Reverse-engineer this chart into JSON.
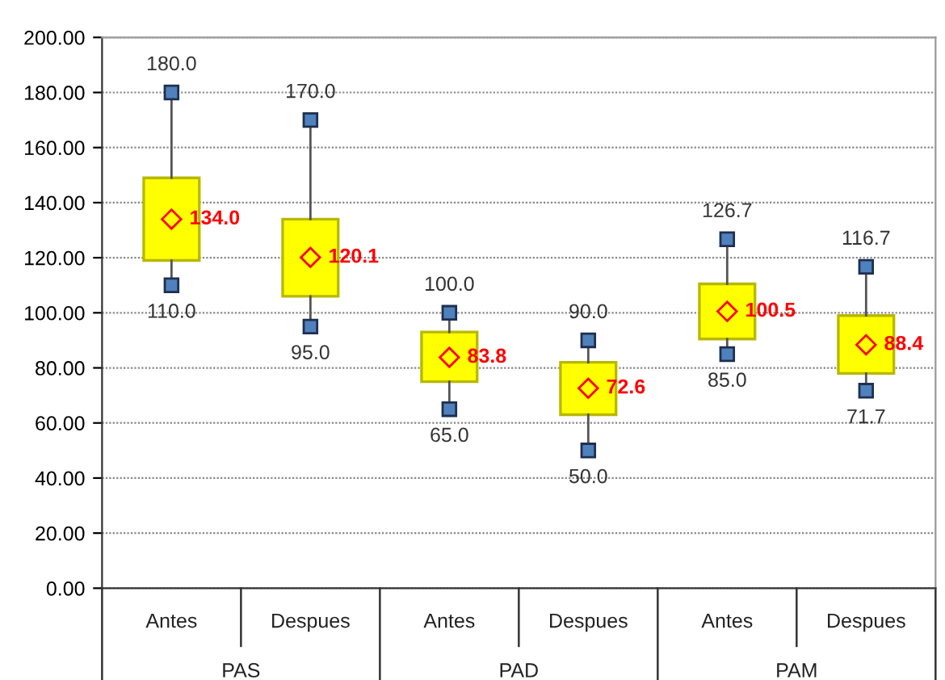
{
  "chart_data": {
    "type": "box",
    "categories": [
      "Antes",
      "Despues",
      "Antes",
      "Despues",
      "Antes",
      "Despues"
    ],
    "boxes": [
      {
        "low": 110.0,
        "q1": 119,
        "q3": 149,
        "high": 180.0
      },
      {
        "low": 95.0,
        "q1": 106,
        "q3": 134,
        "high": 170.0
      },
      {
        "low": 65.0,
        "q1": 75,
        "q3": 93,
        "high": 100.0
      },
      {
        "low": 50.0,
        "q1": 63,
        "q3": 82,
        "high": 90.0
      },
      {
        "low": 85.0,
        "q1": 90.5,
        "q3": 110.5,
        "high": 126.7
      },
      {
        "low": 71.7,
        "q1": 78,
        "q3": 99,
        "high": 116.7
      }
    ],
    "color": "#ffff00",
    "series": [
      {
        "type": "scatter",
        "values": [
          180.0,
          170.0,
          100.0,
          90.0,
          126.7,
          116.7
        ],
        "value_labels": [
          "180.0",
          "170.0",
          "100.0",
          "90.0",
          "126.7",
          "116.7"
        ],
        "color": "#4f81bd",
        "marker": "square"
      },
      {
        "type": "scatter",
        "values": [
          110.0,
          95.0,
          65.0,
          50.0,
          85.0,
          71.7
        ],
        "value_labels": [
          "110.0",
          "95.0",
          "65.0",
          "50.0",
          "85.0",
          "71.7"
        ],
        "color": "#4f81bd",
        "marker": "square"
      },
      {
        "type": "scatter",
        "values": [
          134.0,
          120.1,
          83.8,
          72.6,
          100.5,
          88.4
        ],
        "value_labels": [
          "134.0",
          "120.1",
          "83.8",
          "72.6",
          "100.5",
          "88.4"
        ],
        "color": "#ff0000",
        "marker": "diamond"
      }
    ],
    "ylim": [
      0,
      200
    ],
    "yticks": [
      {
        "value": 0,
        "label": "0.00"
      },
      {
        "value": 20,
        "label": "20.00"
      },
      {
        "value": 40,
        "label": "40.00"
      },
      {
        "value": 60,
        "label": "60.00"
      },
      {
        "value": 80,
        "label": "80.00"
      },
      {
        "value": 100,
        "label": "100.00"
      },
      {
        "value": 120,
        "label": "120.00"
      },
      {
        "value": 140,
        "label": "140.00"
      },
      {
        "value": 160,
        "label": "160.00"
      },
      {
        "value": 180,
        "label": "180.00"
      },
      {
        "value": 200,
        "label": "200.00"
      }
    ],
    "grid": "y",
    "annotations": [
      "PAS",
      "PAD",
      "PAM"
    ]
  }
}
